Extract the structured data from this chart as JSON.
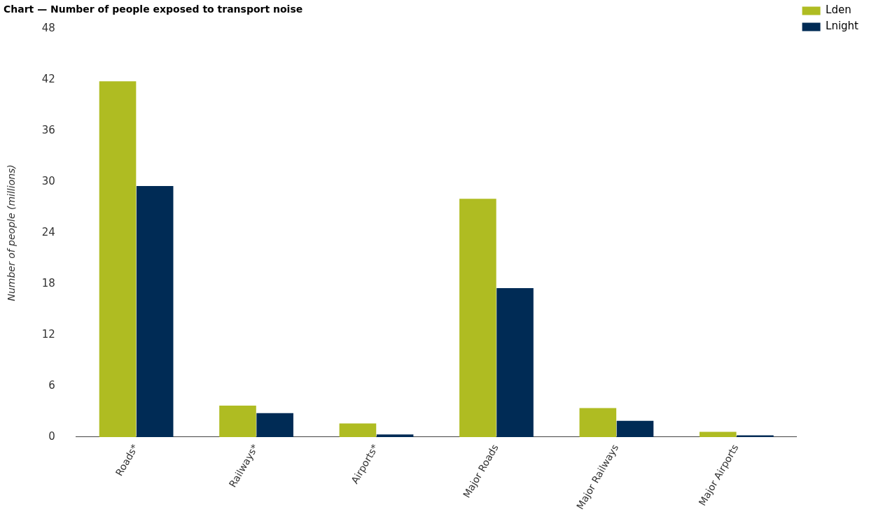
{
  "chart_data": {
    "type": "bar",
    "title": "Chart — Number of people exposed to transport noise",
    "ylabel": "Number of people (millions)",
    "categories": [
      "Roads*",
      "Railways*",
      "Airports*",
      "Major Roads",
      "Major Railways",
      "Major Airports"
    ],
    "series": [
      {
        "name": "Lden",
        "color": "#afbc22",
        "values": [
          41.8,
          3.7,
          1.6,
          28.0,
          3.4,
          0.6
        ]
      },
      {
        "name": "Lnight",
        "color": "#002b55",
        "values": [
          29.5,
          2.8,
          0.3,
          17.5,
          1.9,
          0.2
        ]
      }
    ],
    "ylim": [
      0,
      48
    ],
    "yticks": [
      0,
      6,
      12,
      18,
      24,
      30,
      36,
      42,
      48
    ],
    "grid": false,
    "legend": "top right"
  }
}
